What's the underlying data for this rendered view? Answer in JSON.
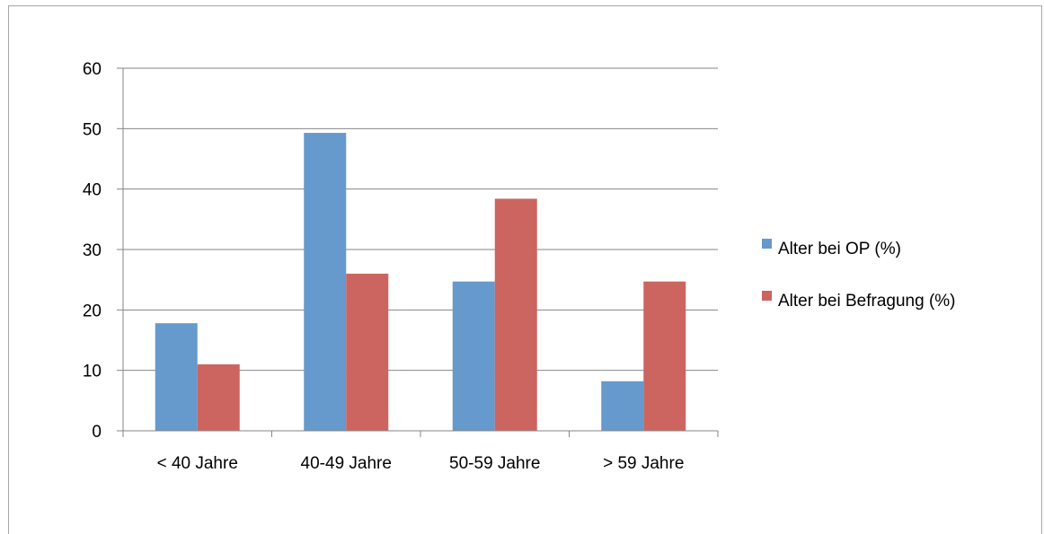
{
  "chart_data": {
    "type": "bar",
    "categories": [
      "< 40 Jahre",
      "40-49 Jahre",
      "50-59 Jahre",
      "> 59 Jahre"
    ],
    "series": [
      {
        "name": "Alter bei OP (%)",
        "values": [
          17.8,
          49.3,
          24.7,
          8.2
        ],
        "color": "#6699cc"
      },
      {
        "name": "Alter bei Befragung (%)",
        "values": [
          11.0,
          26.0,
          38.4,
          24.7
        ],
        "color": "#cc6560"
      }
    ],
    "ylim": [
      0,
      60
    ],
    "yticks": [
      "0",
      "10",
      "20",
      "30",
      "40",
      "50",
      "60"
    ],
    "grid": true,
    "legend_position": "right"
  }
}
